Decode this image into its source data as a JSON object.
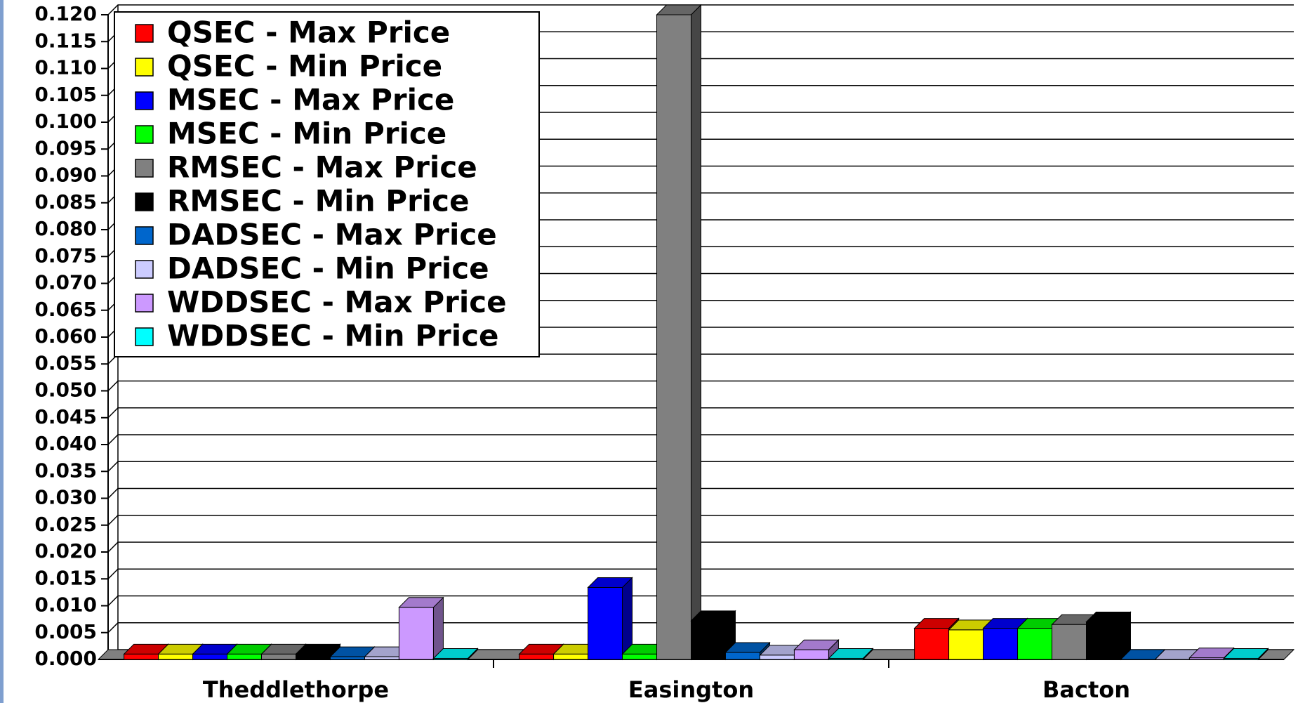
{
  "chart_data": {
    "type": "bar3d",
    "categories": [
      "Theddlethorpe",
      "Easington",
      "Bacton"
    ],
    "series": [
      {
        "name": "QSEC - Max Price",
        "color": "#ff0000",
        "values": [
          0.001,
          0.001,
          0.0058
        ]
      },
      {
        "name": "QSEC - Min Price",
        "color": "#ffff00",
        "values": [
          0.001,
          0.001,
          0.0055
        ]
      },
      {
        "name": "MSEC - Max Price",
        "color": "#0000ff",
        "values": [
          0.001,
          0.0134,
          0.0058
        ]
      },
      {
        "name": "MSEC - Min Price",
        "color": "#00ff00",
        "values": [
          0.001,
          0.001,
          0.0058
        ]
      },
      {
        "name": "RMSEC - Max Price",
        "color": "#808080",
        "values": [
          0.001,
          0.12,
          0.0065
        ]
      },
      {
        "name": "RMSEC - Min Price",
        "color": "#000000",
        "values": [
          0.001,
          0.0072,
          0.007
        ]
      },
      {
        "name": "DADSEC - Max Price",
        "color": "#0066cc",
        "values": [
          0.0005,
          0.0013,
          0
        ]
      },
      {
        "name": "DADSEC - Min Price",
        "color": "#ccccff",
        "values": [
          0.0005,
          0.0008,
          0
        ]
      },
      {
        "name": "WDDSEC - Max Price",
        "color": "#cc99ff",
        "values": [
          0.0097,
          0.0018,
          0.0003
        ]
      },
      {
        "name": "WDDSEC - Min Price",
        "color": "#00ffff",
        "values": [
          0.0002,
          0.0002,
          0.0002
        ]
      }
    ],
    "ylim": [
      0,
      0.12
    ],
    "yticks": [
      {
        "value": 0,
        "label": "0.000"
      },
      {
        "value": 0.005,
        "label": "0.005"
      },
      {
        "value": 0.01,
        "label": "0.010"
      },
      {
        "value": 0.015,
        "label": "0.015"
      },
      {
        "value": 0.02,
        "label": "0.020"
      },
      {
        "value": 0.025,
        "label": "0.025"
      },
      {
        "value": 0.03,
        "label": "0.030"
      },
      {
        "value": 0.035,
        "label": "0.035"
      },
      {
        "value": 0.04,
        "label": "0.040"
      },
      {
        "value": 0.045,
        "label": "0.045"
      },
      {
        "value": 0.05,
        "label": "0.050"
      },
      {
        "value": 0.055,
        "label": "0.055"
      },
      {
        "value": 0.06,
        "label": "0.060"
      },
      {
        "value": 0.065,
        "label": "0.065"
      },
      {
        "value": 0.07,
        "label": "0.070"
      },
      {
        "value": 0.075,
        "label": "0.075"
      },
      {
        "value": 0.08,
        "label": "0.080"
      },
      {
        "value": 0.085,
        "label": "0.085"
      },
      {
        "value": 0.09,
        "label": "0.090"
      },
      {
        "value": 0.095,
        "label": "0.095"
      },
      {
        "value": 0.1,
        "label": "0.100"
      },
      {
        "value": 0.105,
        "label": "0.105"
      },
      {
        "value": 0.11,
        "label": "0.110"
      },
      {
        "value": 0.115,
        "label": "0.115"
      },
      {
        "value": 0.12,
        "label": "0.120"
      }
    ],
    "grid": true,
    "legend": "top-left"
  }
}
